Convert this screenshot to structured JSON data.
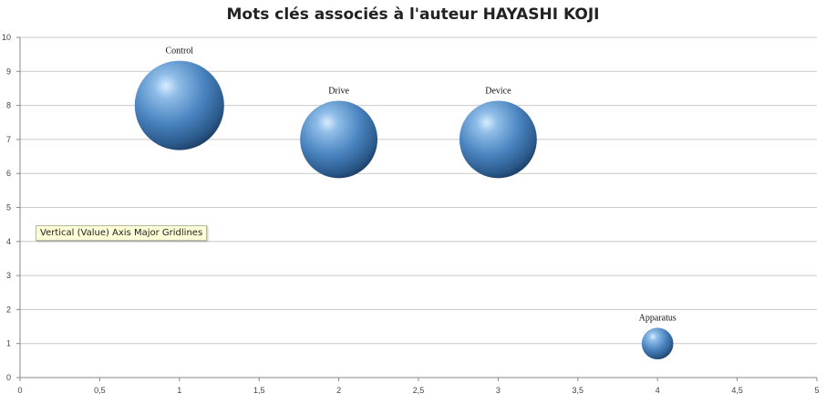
{
  "chart_data": {
    "type": "bubble",
    "title": "Mots clés associés à l'auteur HAYASHI KOJI",
    "xlabel": "",
    "ylabel": "",
    "xlim": [
      0,
      5
    ],
    "ylim": [
      0,
      10
    ],
    "x_ticks": [
      "0",
      "0,5",
      "1",
      "1,5",
      "2",
      "2,5",
      "3",
      "3,5",
      "4",
      "4,5",
      "5"
    ],
    "y_ticks": [
      "0",
      "1",
      "2",
      "3",
      "4",
      "5",
      "6",
      "7",
      "8",
      "9",
      "10"
    ],
    "grid": "horizontal",
    "legend": "none",
    "points": [
      {
        "label": "Control",
        "x": 1,
        "y": 8,
        "size": 4
      },
      {
        "label": "Drive",
        "x": 2,
        "y": 7,
        "size": 3
      },
      {
        "label": "Device",
        "x": 3,
        "y": 7,
        "size": 3
      },
      {
        "label": "Apparatus",
        "x": 4,
        "y": 1,
        "size": 0.5
      }
    ],
    "bubble_color": "#4a84c0"
  },
  "tooltip": {
    "text": "Vertical (Value) Axis Major Gridlines"
  }
}
